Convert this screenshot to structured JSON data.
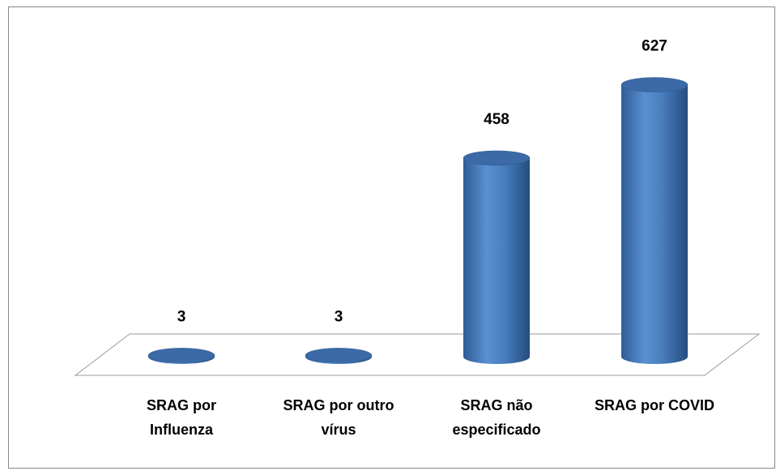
{
  "chart_data": {
    "type": "bar3d",
    "categories": [
      "SRAG por Influenza",
      "SRAG por outro vírus",
      "SRAG não especificado",
      "SRAG por COVID"
    ],
    "values": [
      3,
      3,
      458,
      627
    ],
    "color": "#4f81bd"
  }
}
